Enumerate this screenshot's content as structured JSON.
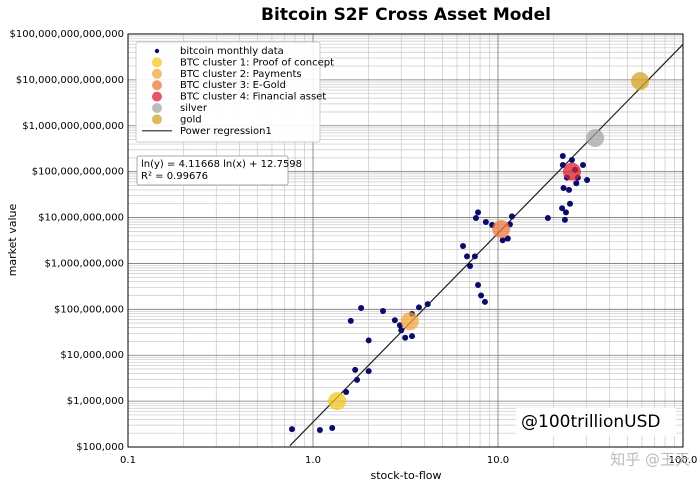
{
  "chart_data": {
    "type": "scatter",
    "title": "Bitcoin S2F Cross Asset Model",
    "x_label": "stock-to-flow",
    "y_label": "market value",
    "xscale": "log",
    "yscale": "log",
    "xlim": [
      0.1,
      100
    ],
    "ylim": [
      100000,
      100000000000000
    ],
    "xticks": [
      0.1,
      {
        "value": 1,
        "label": "1.0"
      },
      {
        "value": 10,
        "label": "10.0"
      },
      {
        "value": 100,
        "label": "100.0"
      }
    ],
    "yticks": [
      {
        "value": 100000,
        "label": "$100,000"
      },
      {
        "value": 1000000,
        "label": "$1,000,000"
      },
      {
        "value": 10000000,
        "label": "$10,000,000"
      },
      {
        "value": 100000000,
        "label": "$100,000,000"
      },
      {
        "value": 1000000000,
        "label": "$1,000,000,000"
      },
      {
        "value": 10000000000,
        "label": "$10,000,000,000"
      },
      {
        "value": 100000000000,
        "label": "$100,000,000,000"
      },
      {
        "value": 1000000000000,
        "label": "$1,000,000,000,000"
      },
      {
        "value": 10000000000000,
        "label": "$10,000,000,000,000"
      },
      {
        "value": 100000000000000,
        "label": "$100,000,000,000,000"
      }
    ],
    "grid": true,
    "minor_grid": true,
    "legend": "upper left",
    "series": [
      {
        "name": "bitcoin monthly data",
        "color": "#0b0b6b",
        "size": 3,
        "x": [
          0.77,
          1.09,
          1.27,
          1.51,
          1.69,
          1.73,
          2.0,
          2.0,
          1.6,
          1.82,
          2.39,
          2.77,
          2.95,
          3.0,
          3.15,
          3.43,
          3.43,
          3.74,
          4.17,
          6.47,
          6.8,
          7.06,
          7.5,
          7.8,
          8.1,
          8.5,
          7.6,
          7.8,
          8.6,
          9.3,
          10.6,
          11.3,
          11.6,
          11.9,
          18.6,
          22.4,
          22.4,
          23.6,
          22.6,
          22.2,
          23.3,
          23.0,
          24.5,
          25.1,
          26.1,
          27.0,
          30.3,
          26.5,
          24.2,
          28.8
        ],
        "values": [
          245000,
          234000,
          260000,
          1580000,
          4800000,
          2900000,
          4500000,
          21000000,
          56000000,
          107000000,
          92000000,
          58000000,
          45000000,
          35000000,
          24000000,
          26000000,
          79000000,
          110000000,
          130000000,
          2400000000,
          1430000000,
          880000000,
          1430000000,
          340000000,
          200000000,
          145000000,
          9800000000,
          13000000000,
          8000000000,
          6900000000,
          3200000000,
          3500000000,
          7100000000,
          10600000000,
          9800000000,
          220000000000,
          140000000000,
          74000000000,
          44000000000,
          16000000000,
          13000000000,
          8900000000,
          20000000000,
          180000000000,
          110000000000,
          74000000000,
          66000000000,
          56000000000,
          40000000000,
          140000000000
        ]
      },
      {
        "name": "BTC cluster 1: Proof of concept",
        "color": "#f5c61f",
        "size": 9,
        "x": [
          1.35
        ],
        "values": [
          1000000
        ]
      },
      {
        "name": "BTC cluster 2: Payments",
        "color": "#f3a43a",
        "size": 9,
        "x": [
          3.34
        ],
        "values": [
          55000000
        ]
      },
      {
        "name": "BTC cluster 3: E-Gold",
        "color": "#ec7a3c",
        "size": 9,
        "x": [
          10.4
        ],
        "values": [
          5600000000
        ]
      },
      {
        "name": "BTC cluster 4: Financial asset",
        "color": "#d9222f",
        "size": 9,
        "x": [
          25.1
        ],
        "values": [
          100000000000
        ]
      },
      {
        "name": "silver",
        "color": "#a6a6a6",
        "size": 9,
        "x": [
          33.5
        ],
        "values": [
          540000000000
        ]
      },
      {
        "name": "gold",
        "color": "#d2a424",
        "size": 9,
        "x": [
          58.6
        ],
        "values": [
          9400000000000
        ]
      },
      {
        "name": "Power regression1",
        "kind": "line",
        "color": "#222222",
        "x": [
          0.75,
          100
        ],
        "values": [
          107000,
          59500000000000
        ]
      }
    ],
    "annotation": [
      "ln(y) = 4.11668 ln(x) + 12.7598",
      "R² = 0.99676"
    ],
    "watermarks": [
      "@100trillionUSD",
      "知乎 @王天"
    ]
  }
}
